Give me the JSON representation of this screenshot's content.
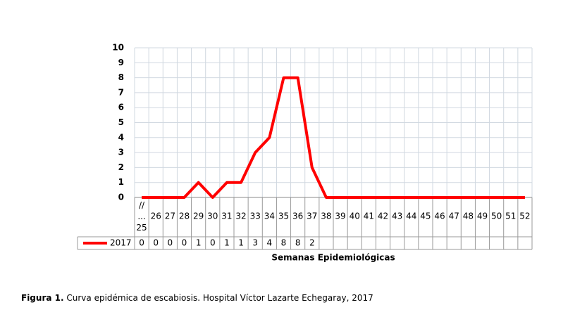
{
  "chart_data": {
    "type": "line",
    "categories": [
      "//\n...\n25",
      "26",
      "27",
      "28",
      "29",
      "30",
      "31",
      "32",
      "33",
      "34",
      "35",
      "36",
      "37",
      "38",
      "39",
      "40",
      "41",
      "42",
      "43",
      "44",
      "45",
      "46",
      "47",
      "48",
      "49",
      "50",
      "51",
      "52"
    ],
    "series": [
      {
        "name": "2017",
        "color": "#ff0000",
        "values": [
          0,
          0,
          0,
          0,
          1,
          0,
          1,
          1,
          3,
          4,
          8,
          8,
          2,
          0,
          0,
          0,
          0,
          0,
          0,
          0,
          0,
          0,
          0,
          0,
          0,
          0,
          0,
          0
        ],
        "value_labels": [
          "0",
          "0",
          "0",
          "0",
          "1",
          "0",
          "1",
          "1",
          "3",
          "4",
          "8",
          "8",
          "2",
          null,
          null,
          null,
          null,
          null,
          null,
          null,
          null,
          null,
          null,
          null,
          null,
          null,
          null,
          null
        ]
      }
    ],
    "ylim": [
      0,
      10
    ],
    "yticks": [
      0,
      1,
      2,
      3,
      4,
      5,
      6,
      7,
      8,
      9,
      10
    ],
    "grid": true,
    "xlabel": "Semanas Epidemiológicas",
    "caption_label": "Figura 1.",
    "caption": "Curva epidémica de escabiosis. Hospital Víctor Lazarte Echegaray, 2017"
  }
}
